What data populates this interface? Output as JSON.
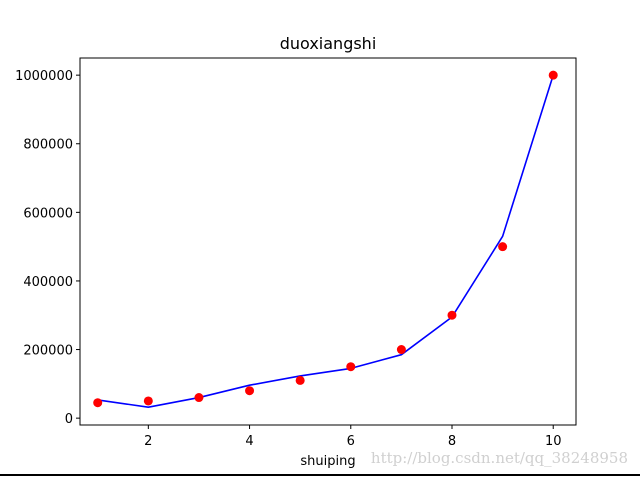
{
  "chart_data": {
    "type": "line",
    "title": "duoxiangshi",
    "xlabel": "shuiping",
    "ylabel": "",
    "xlim": [
      0.65,
      10.45
    ],
    "ylim": [
      -20000,
      1050000
    ],
    "xticks": [
      2,
      4,
      6,
      8,
      10
    ],
    "xtick_labels": [
      "2",
      "4",
      "6",
      "8",
      "10"
    ],
    "yticks": [
      0,
      200000,
      400000,
      600000,
      800000,
      1000000
    ],
    "ytick_labels": [
      "0",
      "200000",
      "400000",
      "600000",
      "800000",
      "1000000"
    ],
    "grid": false,
    "series": [
      {
        "kind": "scatter",
        "color": "#ff0000",
        "x": [
          1,
          2,
          3,
          4,
          5,
          6,
          7,
          8,
          9,
          10
        ],
        "y": [
          45000,
          50000,
          60000,
          80000,
          110000,
          150000,
          200000,
          300000,
          500000,
          1000000
        ]
      },
      {
        "kind": "line",
        "color": "#0000ff",
        "x": [
          1,
          2,
          3,
          4,
          5,
          6,
          7,
          8,
          9,
          10
        ],
        "y": [
          53000,
          32000,
          60000,
          96000,
          123000,
          145000,
          185000,
          295000,
          530000,
          1000000
        ]
      }
    ]
  },
  "watermark": "http://blog.csdn.net/qq_38248958"
}
